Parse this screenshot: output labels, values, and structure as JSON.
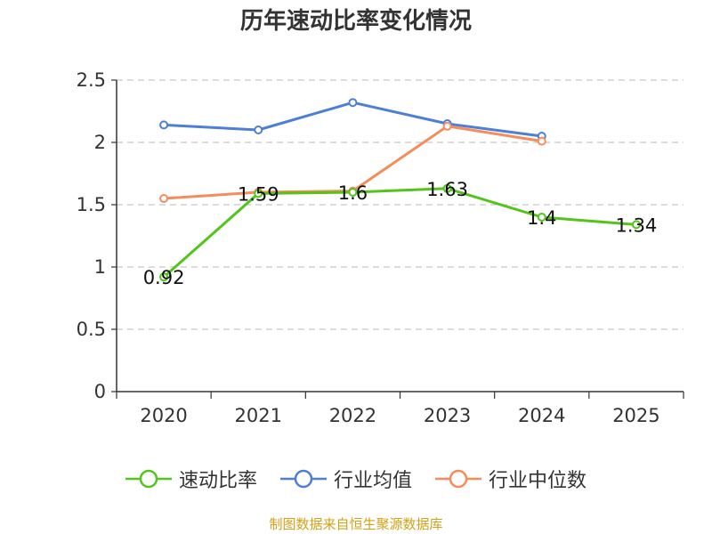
{
  "chart_data": {
    "type": "line",
    "title": "历年速动比率变化情况",
    "categories": [
      "2020",
      "2021",
      "2022",
      "2023",
      "2024",
      "2025"
    ],
    "ylim": [
      0,
      2.5
    ],
    "yticks": [
      0,
      0.5,
      1,
      1.5,
      2,
      2.5
    ],
    "ytick_labels": [
      "0",
      "0.5",
      "1",
      "1.5",
      "2",
      "2.5"
    ],
    "grid": true,
    "legend_position": "bottom",
    "series": [
      {
        "name": "速动比率",
        "color": "#52c41a",
        "values": [
          0.92,
          1.59,
          1.6,
          1.63,
          1.4,
          1.34
        ],
        "labels": [
          "0.92",
          "1.59",
          "1.6",
          "1.63",
          "1.4",
          "1.34"
        ]
      },
      {
        "name": "行业均值",
        "color": "#4e7fd6",
        "values": [
          2.14,
          2.1,
          2.32,
          2.15,
          2.05,
          null
        ]
      },
      {
        "name": "行业中位数",
        "color": "#f58c5a",
        "values": [
          1.55,
          1.6,
          1.61,
          2.13,
          2.01,
          null
        ]
      }
    ]
  },
  "source_note": "制图数据来自恒生聚源数据库"
}
